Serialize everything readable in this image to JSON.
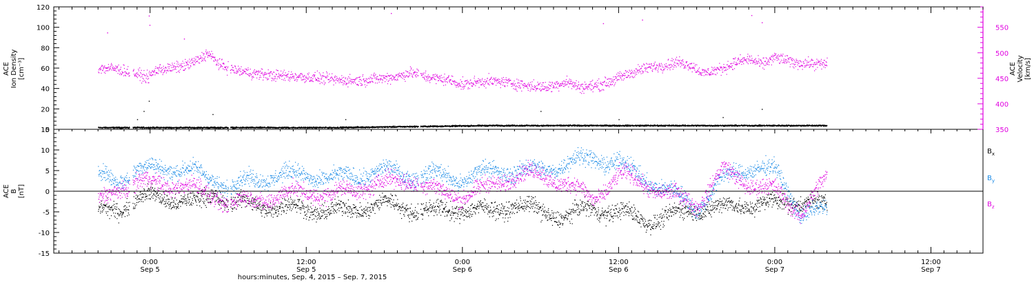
{
  "colors": {
    "black": "#000000",
    "magenta": "#e000e0",
    "blue": "#1a8ae6"
  },
  "chart_data": [
    {
      "type": "scatter",
      "panel": "top",
      "ylabel_left_lines": [
        "ACE",
        "Ion Density",
        "[cm⁻³]"
      ],
      "ylabel_right_lines": [
        "ACE",
        "Velocity",
        "[km/s]"
      ],
      "ylim_left": [
        0,
        120
      ],
      "yticks_left": [
        "0",
        "20",
        "40",
        "60",
        "80",
        "100",
        "120"
      ],
      "ylim_right": [
        350,
        590
      ],
      "yticks_right": [
        "350",
        "400",
        "450",
        "500",
        "550"
      ],
      "data_end_hours": 52.0,
      "series": [
        {
          "color": "#000000",
          "axis": "left",
          "anchors": [
            [
              -4.0,
              2
            ],
            [
              8,
              2
            ],
            [
              14,
              2
            ],
            [
              20,
              3
            ],
            [
              26,
              4
            ],
            [
              32,
              4
            ],
            [
              38,
              4
            ],
            [
              44,
              4
            ],
            [
              50,
              4
            ],
            [
              52,
              4
            ]
          ],
          "spikes": [
            [
              -0.1,
              28
            ],
            [
              -0.5,
              18
            ],
            [
              4.8,
              15
            ],
            [
              15,
              10
            ],
            [
              30,
              18
            ],
            [
              36,
              10
            ],
            [
              44,
              12
            ],
            [
              47,
              20
            ],
            [
              -1,
              10
            ]
          ]
        },
        {
          "color": "#e000e0",
          "axis": "right",
          "anchors": [
            [
              -4.0,
              470
            ],
            [
              -2.8,
              470
            ],
            [
              -1.5,
              462
            ],
            [
              -0.6,
              455
            ],
            [
              -0.2,
              452
            ],
            [
              0.5,
              468
            ],
            [
              1.6,
              470
            ],
            [
              2.6,
              475
            ],
            [
              3.6,
              485
            ],
            [
              4.4,
              500
            ],
            [
              5.4,
              476
            ],
            [
              6.6,
              466
            ],
            [
              8.0,
              460
            ],
            [
              9.5,
              456
            ],
            [
              10.8,
              455
            ],
            [
              12.5,
              452
            ],
            [
              14.5,
              447
            ],
            [
              16.0,
              446
            ],
            [
              17.5,
              450
            ],
            [
              19.0,
              454
            ],
            [
              20.0,
              462
            ],
            [
              21.5,
              452
            ],
            [
              23.0,
              447
            ],
            [
              24.0,
              438
            ],
            [
              25.5,
              445
            ],
            [
              27.0,
              444
            ],
            [
              28.0,
              440
            ],
            [
              29.0,
              436
            ],
            [
              30.5,
              433
            ],
            [
              32.0,
              444
            ],
            [
              33.0,
              433
            ],
            [
              34.5,
              437
            ],
            [
              35.5,
              446
            ],
            [
              36.5,
              457
            ],
            [
              37.5,
              466
            ],
            [
              38.5,
              473
            ],
            [
              39.5,
              476
            ],
            [
              40.5,
              482
            ],
            [
              41.5,
              477
            ],
            [
              42.5,
              460
            ],
            [
              44.0,
              470
            ],
            [
              45.0,
              482
            ],
            [
              46.0,
              488
            ],
            [
              47.0,
              478
            ],
            [
              48.0,
              492
            ],
            [
              49.5,
              481
            ],
            [
              51.0,
              479
            ],
            [
              52.0,
              478
            ]
          ],
          "spikes": [
            [
              -3.3,
              540
            ],
            [
              -0.1,
              573
            ],
            [
              -0.05,
              555
            ],
            [
              18.5,
              578
            ],
            [
              34.8,
              558
            ],
            [
              37.8,
              565
            ],
            [
              46.2,
              574
            ],
            [
              47.0,
              560
            ],
            [
              2.6,
              528
            ]
          ]
        }
      ]
    },
    {
      "type": "scatter",
      "panel": "bottom",
      "ylabel_lines": [
        "ACE",
        "B",
        "[nT]"
      ],
      "ylim": [
        -15,
        15
      ],
      "yticks": [
        "-15",
        "-10",
        "-5",
        "0",
        "5",
        "10",
        "15"
      ],
      "zero_line": true,
      "x_ticks": [
        {
          "x": 0,
          "time": "0:00",
          "date": "Sep 5"
        },
        {
          "x": 12,
          "time": "12:00",
          "date": "Sep 5"
        },
        {
          "x": 24,
          "time": "0:00",
          "date": "Sep 6"
        },
        {
          "x": 36,
          "time": "12:00",
          "date": "Sep 6"
        },
        {
          "x": 48,
          "time": "0:00",
          "date": "Sep 7"
        },
        {
          "x": 60,
          "time": "12:00",
          "date": "Sep 7"
        }
      ],
      "xlim_hours": [
        -7.4,
        64.0
      ],
      "xlabel": "hours:minutes, Sep.  4, 2015 – Sep.  7, 2015",
      "series": [
        {
          "name": "Bx",
          "color": "#000000",
          "anchors": [
            [
              -4.0,
              -5
            ],
            [
              -2.5,
              -4
            ],
            [
              -1.0,
              -2
            ],
            [
              0.5,
              -1
            ],
            [
              2.0,
              -2
            ],
            [
              3.5,
              -3
            ],
            [
              5.0,
              0
            ],
            [
              6.0,
              -3
            ],
            [
              8.0,
              -3
            ],
            [
              10.0,
              -4
            ],
            [
              12.0,
              -4
            ],
            [
              14.0,
              -5
            ],
            [
              16.0,
              -4
            ],
            [
              18.0,
              -3
            ],
            [
              20.0,
              -4
            ],
            [
              22.0,
              -5
            ],
            [
              24.0,
              -4
            ],
            [
              26.0,
              -5
            ],
            [
              28.0,
              -3
            ],
            [
              30.0,
              -5
            ],
            [
              32.0,
              -6
            ],
            [
              34.0,
              -4
            ],
            [
              36.0,
              -5
            ],
            [
              38.0,
              -7
            ],
            [
              40.0,
              -6
            ],
            [
              42.0,
              -4
            ],
            [
              44.0,
              -4
            ],
            [
              46.0,
              -3
            ],
            [
              48.0,
              -3
            ],
            [
              50.0,
              -2
            ],
            [
              52.0,
              -4
            ]
          ]
        },
        {
          "name": "By",
          "color": "#1a8ae6",
          "anchors": [
            [
              -4.0,
              4
            ],
            [
              -2.5,
              3
            ],
            [
              -1.0,
              5
            ],
            [
              1.0,
              6
            ],
            [
              3.0,
              5
            ],
            [
              5.0,
              3
            ],
            [
              6.0,
              1
            ],
            [
              8.0,
              3
            ],
            [
              10.0,
              4
            ],
            [
              12.0,
              4
            ],
            [
              14.0,
              3
            ],
            [
              16.0,
              4
            ],
            [
              18.0,
              5
            ],
            [
              20.0,
              4
            ],
            [
              22.0,
              4
            ],
            [
              24.0,
              3
            ],
            [
              26.0,
              5
            ],
            [
              28.0,
              5
            ],
            [
              30.0,
              5
            ],
            [
              32.0,
              7
            ],
            [
              34.0,
              8
            ],
            [
              36.0,
              7
            ],
            [
              38.0,
              3
            ],
            [
              40.0,
              0
            ],
            [
              42.0,
              -4
            ],
            [
              44.0,
              3
            ],
            [
              46.0,
              6
            ],
            [
              48.0,
              5
            ],
            [
              50.0,
              -5
            ],
            [
              52.0,
              -5
            ]
          ]
        },
        {
          "name": "Bz",
          "color": "#e000e0",
          "anchors": [
            [
              -4.0,
              -3
            ],
            [
              -2.5,
              1
            ],
            [
              -1.0,
              2
            ],
            [
              1.0,
              2
            ],
            [
              3.0,
              1
            ],
            [
              5.0,
              -1
            ],
            [
              6.0,
              -3
            ],
            [
              8.0,
              -2
            ],
            [
              10.0,
              -1
            ],
            [
              12.0,
              0
            ],
            [
              14.0,
              -1
            ],
            [
              16.0,
              1
            ],
            [
              18.0,
              2
            ],
            [
              20.0,
              3
            ],
            [
              22.0,
              0
            ],
            [
              24.0,
              -1
            ],
            [
              26.0,
              1
            ],
            [
              28.0,
              4
            ],
            [
              30.0,
              4
            ],
            [
              32.0,
              2
            ],
            [
              34.0,
              -2
            ],
            [
              36.0,
              4
            ],
            [
              38.0,
              2
            ],
            [
              40.0,
              -1
            ],
            [
              42.0,
              -3
            ],
            [
              44.0,
              5
            ],
            [
              46.0,
              2
            ],
            [
              48.0,
              0
            ],
            [
              50.0,
              -5
            ],
            [
              52.0,
              3
            ]
          ]
        }
      ],
      "legend": [
        {
          "base": "B",
          "sub": "x",
          "color": "#000000"
        },
        {
          "base": "B",
          "sub": "y",
          "color": "#1a8ae6"
        },
        {
          "base": "B",
          "sub": "z",
          "color": "#e000e0"
        }
      ]
    }
  ]
}
